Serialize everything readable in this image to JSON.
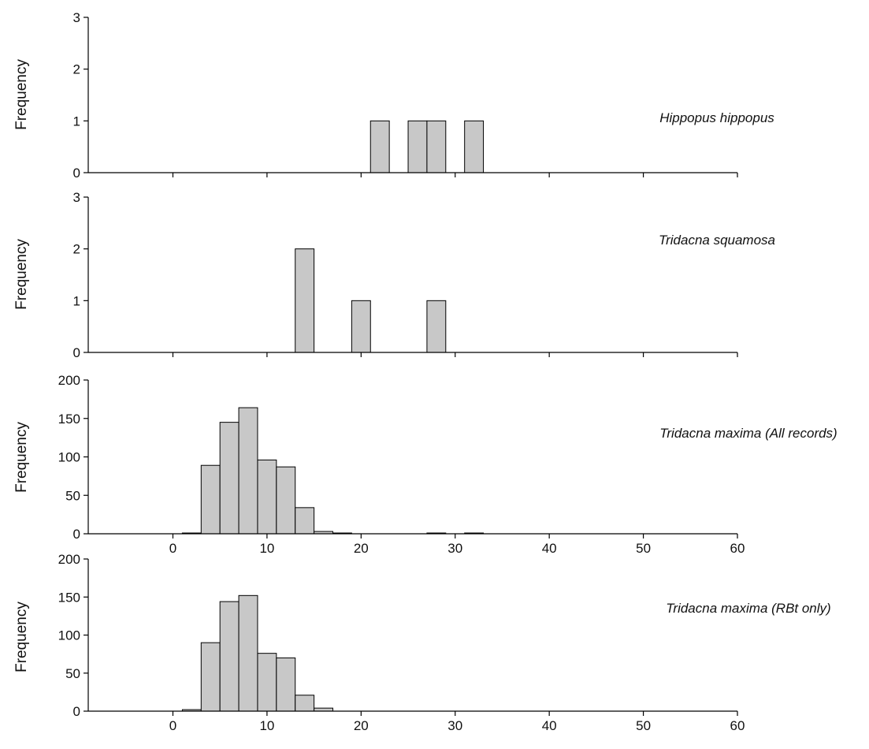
{
  "chart_data": [
    {
      "type": "bar",
      "title": "Hippopus hippopus",
      "ylabel": "Frequency",
      "xlabel": "",
      "xlim": [
        -9,
        60
      ],
      "ylim": [
        0,
        3
      ],
      "yticks": [
        0,
        1,
        2,
        3
      ],
      "xticks": [
        0,
        10,
        20,
        30,
        40,
        50,
        60
      ],
      "show_xtick_labels": false,
      "bin_width": 2,
      "bins": [
        {
          "start": 21,
          "end": 23,
          "value": 1
        },
        {
          "start": 25,
          "end": 27,
          "value": 1
        },
        {
          "start": 27,
          "end": 29,
          "value": 1
        },
        {
          "start": 31,
          "end": 33,
          "value": 1
        }
      ]
    },
    {
      "type": "bar",
      "title": "Tridacna squamosa",
      "ylabel": "Frequency",
      "xlabel": "",
      "xlim": [
        -9,
        60
      ],
      "ylim": [
        0,
        3
      ],
      "yticks": [
        0,
        1,
        2,
        3
      ],
      "xticks": [
        0,
        10,
        20,
        30,
        40,
        50,
        60
      ],
      "show_xtick_labels": false,
      "bin_width": 2,
      "bins": [
        {
          "start": 13,
          "end": 15,
          "value": 2
        },
        {
          "start": 19,
          "end": 21,
          "value": 1
        },
        {
          "start": 27,
          "end": 29,
          "value": 1
        }
      ]
    },
    {
      "type": "bar",
      "title": "Tridacna maxima (All records)",
      "ylabel": "Frequency",
      "xlabel": "",
      "xlim": [
        -9,
        60
      ],
      "ylim": [
        0,
        200
      ],
      "yticks": [
        0,
        50,
        100,
        150,
        200
      ],
      "xticks": [
        0,
        10,
        20,
        30,
        40,
        50,
        60
      ],
      "show_xtick_labels": true,
      "bin_width": 2,
      "bins": [
        {
          "start": 1,
          "end": 3,
          "value": 1
        },
        {
          "start": 3,
          "end": 5,
          "value": 89
        },
        {
          "start": 5,
          "end": 7,
          "value": 145
        },
        {
          "start": 7,
          "end": 9,
          "value": 164
        },
        {
          "start": 9,
          "end": 11,
          "value": 96
        },
        {
          "start": 11,
          "end": 13,
          "value": 87
        },
        {
          "start": 13,
          "end": 15,
          "value": 34
        },
        {
          "start": 15,
          "end": 17,
          "value": 3
        },
        {
          "start": 17,
          "end": 19,
          "value": 1
        },
        {
          "start": 27,
          "end": 29,
          "value": 1
        },
        {
          "start": 31,
          "end": 33,
          "value": 1
        }
      ]
    },
    {
      "type": "bar",
      "title": "Tridacna maxima (RBt only)",
      "ylabel": "Frequency",
      "xlabel": "",
      "xlim": [
        -9,
        60
      ],
      "ylim": [
        0,
        200
      ],
      "yticks": [
        0,
        50,
        100,
        150,
        200
      ],
      "xticks": [
        0,
        10,
        20,
        30,
        40,
        50,
        60
      ],
      "show_xtick_labels": true,
      "bin_width": 2,
      "bins": [
        {
          "start": 1,
          "end": 3,
          "value": 2
        },
        {
          "start": 3,
          "end": 5,
          "value": 90
        },
        {
          "start": 5,
          "end": 7,
          "value": 144
        },
        {
          "start": 7,
          "end": 9,
          "value": 152
        },
        {
          "start": 9,
          "end": 11,
          "value": 76
        },
        {
          "start": 11,
          "end": 13,
          "value": 70
        },
        {
          "start": 13,
          "end": 15,
          "value": 21
        },
        {
          "start": 15,
          "end": 17,
          "value": 4
        }
      ]
    }
  ]
}
